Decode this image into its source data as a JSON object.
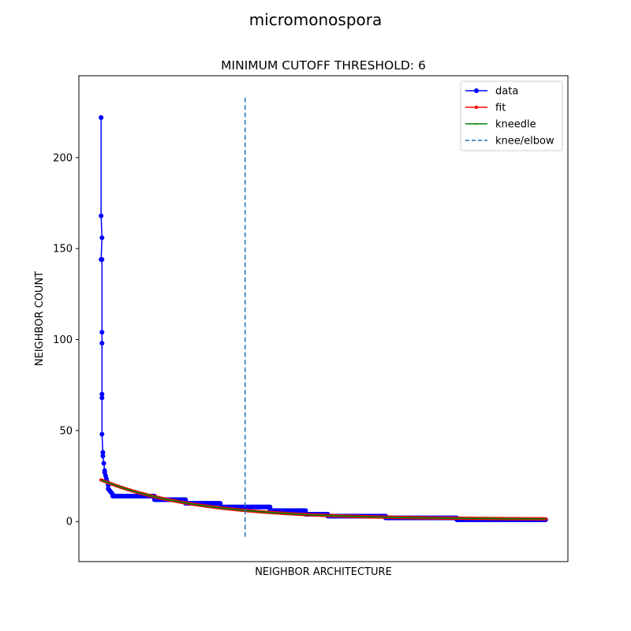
{
  "chart_data": {
    "type": "line",
    "suptitle": "micromonospora",
    "title": "MINIMUM CUTOFF THRESHOLD: 6",
    "xlabel": "NEIGHBOR ARCHITECTURE",
    "ylabel": "NEIGHBOR COUNT",
    "xlim": [
      -25,
      525
    ],
    "ylim": [
      -22,
      245
    ],
    "yticks": [
      0,
      50,
      100,
      150,
      200
    ],
    "xticks_shown": false,
    "grid": false,
    "legend_position": "top-right",
    "legend": [
      {
        "label": "data",
        "color": "#0000ff",
        "marker": "circle"
      },
      {
        "label": "fit",
        "color": "#ff0000",
        "marker": "point"
      },
      {
        "label": "kneedle",
        "color": "#008000",
        "marker": "pixel"
      },
      {
        "label": "knee/elbow",
        "color": "#1f77b4",
        "style": "dashed"
      }
    ],
    "series": [
      {
        "name": "data",
        "color": "#0000ff",
        "segments": [
          {
            "x_start": 0,
            "x_end": 0,
            "y_start": 222,
            "y_end": 222
          },
          {
            "x_start": 0,
            "x_end": 1,
            "y_start": 168,
            "y_end": 156
          },
          {
            "x_start": 0,
            "x_end": 1,
            "y_start": 144,
            "y_end": 144
          },
          {
            "x_start": 1,
            "x_end": 1,
            "y_start": 104,
            "y_end": 98
          },
          {
            "x_start": 1,
            "x_end": 1,
            "y_start": 70,
            "y_end": 68
          },
          {
            "x_start": 1,
            "x_end": 2,
            "y_start": 48,
            "y_end": 38
          },
          {
            "x_start": 2,
            "x_end": 4,
            "y_start": 36,
            "y_end": 28
          },
          {
            "x_start": 4,
            "x_end": 8,
            "y_start": 27,
            "y_end": 20
          },
          {
            "x_start": 8,
            "x_end": 13,
            "y_start": 18,
            "y_end": 15
          },
          {
            "x_start": 13,
            "x_end": 60,
            "y_start": 14,
            "y_end": 14
          },
          {
            "x_start": 60,
            "x_end": 95,
            "y_start": 12,
            "y_end": 12
          },
          {
            "x_start": 95,
            "x_end": 134,
            "y_start": 10,
            "y_end": 10
          },
          {
            "x_start": 134,
            "x_end": 190,
            "y_start": 8,
            "y_end": 8
          },
          {
            "x_start": 190,
            "x_end": 230,
            "y_start": 6,
            "y_end": 6
          },
          {
            "x_start": 230,
            "x_end": 255,
            "y_start": 4,
            "y_end": 4
          },
          {
            "x_start": 255,
            "x_end": 320,
            "y_start": 3,
            "y_end": 3
          },
          {
            "x_start": 320,
            "x_end": 400,
            "y_start": 2,
            "y_end": 2
          },
          {
            "x_start": 400,
            "x_end": 500,
            "y_start": 1,
            "y_end": 1
          }
        ]
      },
      {
        "name": "fit",
        "color": "#ff0000",
        "model": "exponential",
        "x_range": [
          0,
          500
        ],
        "y_at_start": 22.8,
        "y_at_knee": 6.0,
        "y_at_end": 1.5
      },
      {
        "name": "kneedle",
        "color": "#008000",
        "model": "exponential",
        "x_range": [
          0,
          500
        ],
        "y_at_start": 22.8,
        "y_at_knee": 6.0,
        "y_at_end": 1.5
      }
    ],
    "knee": {
      "x": 162,
      "y_range": [
        -9,
        233
      ],
      "color": "#1f77b4",
      "style": "dashed"
    }
  }
}
